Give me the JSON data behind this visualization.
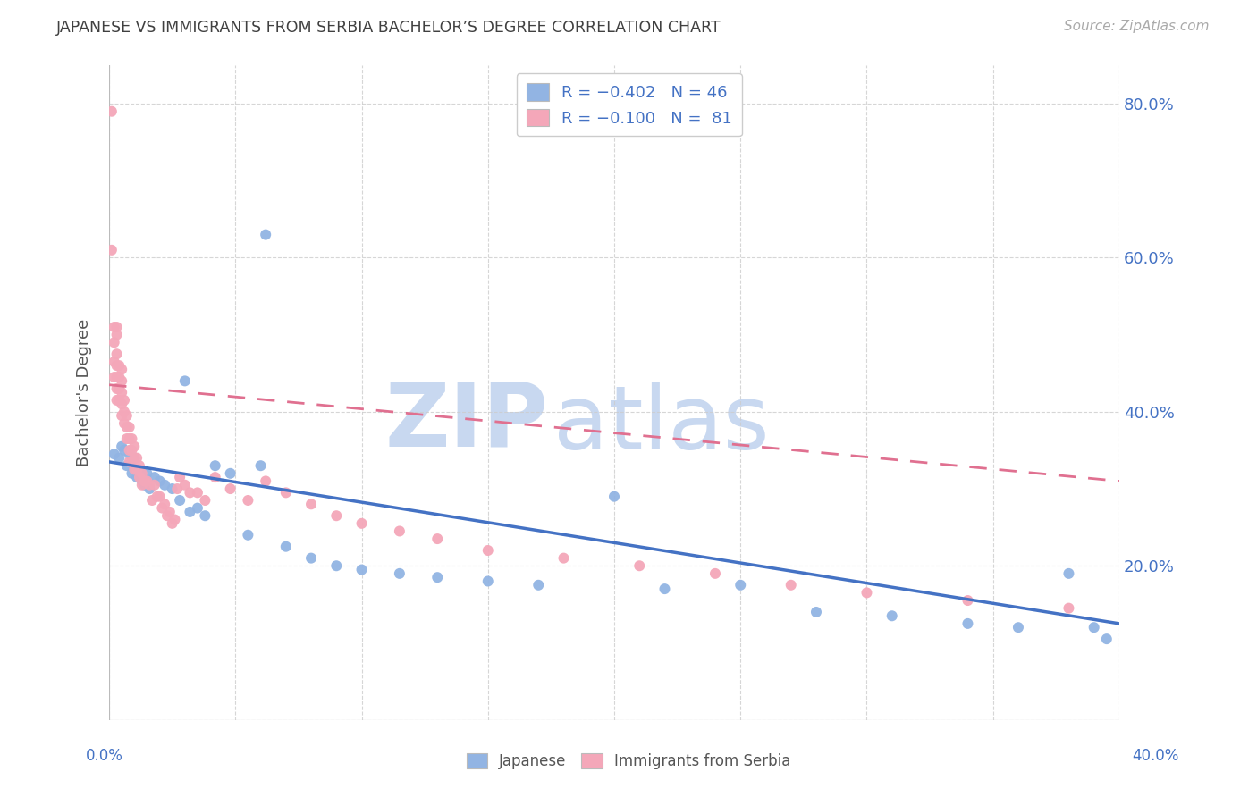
{
  "title": "JAPANESE VS IMMIGRANTS FROM SERBIA BACHELOR’S DEGREE CORRELATION CHART",
  "source": "Source: ZipAtlas.com",
  "ylabel": "Bachelor's Degree",
  "watermark_zip": "ZIP",
  "watermark_atlas": "atlas",
  "xlim": [
    0.0,
    0.4
  ],
  "ylim": [
    0.0,
    0.85
  ],
  "yticks": [
    0.0,
    0.2,
    0.4,
    0.6,
    0.8
  ],
  "ytick_labels": [
    "",
    "20.0%",
    "40.0%",
    "60.0%",
    "80.0%"
  ],
  "legend_line1": "R = −0.402   N = 46",
  "legend_line2": "R = −0.100   N =  81",
  "color_japanese": "#92b4e3",
  "color_serbia": "#f4a7b9",
  "color_trendline_japanese": "#4472c4",
  "color_trendline_serbia": "#e07090",
  "color_axis_labels": "#4472c4",
  "color_title": "#404040",
  "color_source": "#aaaaaa",
  "color_watermark_zip": "#c8d8f0",
  "color_watermark_atlas": "#c8d8f0",
  "background_color": "#ffffff",
  "grid_color": "#cccccc",
  "japanese_x": [
    0.002,
    0.004,
    0.005,
    0.006,
    0.007,
    0.008,
    0.009,
    0.01,
    0.011,
    0.012,
    0.013,
    0.014,
    0.015,
    0.016,
    0.018,
    0.02,
    0.022,
    0.025,
    0.028,
    0.03,
    0.032,
    0.035,
    0.038,
    0.042,
    0.048,
    0.055,
    0.062,
    0.07,
    0.08,
    0.09,
    0.1,
    0.115,
    0.13,
    0.15,
    0.17,
    0.2,
    0.22,
    0.25,
    0.28,
    0.31,
    0.34,
    0.36,
    0.38,
    0.39,
    0.395,
    0.06
  ],
  "japanese_y": [
    0.345,
    0.34,
    0.355,
    0.35,
    0.33,
    0.345,
    0.32,
    0.34,
    0.315,
    0.325,
    0.31,
    0.305,
    0.32,
    0.3,
    0.315,
    0.31,
    0.305,
    0.3,
    0.285,
    0.44,
    0.27,
    0.275,
    0.265,
    0.33,
    0.32,
    0.24,
    0.63,
    0.225,
    0.21,
    0.2,
    0.195,
    0.19,
    0.185,
    0.18,
    0.175,
    0.29,
    0.17,
    0.175,
    0.14,
    0.135,
    0.125,
    0.12,
    0.19,
    0.12,
    0.105,
    0.33
  ],
  "serbia_x": [
    0.001,
    0.001,
    0.002,
    0.002,
    0.002,
    0.002,
    0.003,
    0.003,
    0.003,
    0.003,
    0.003,
    0.003,
    0.003,
    0.004,
    0.004,
    0.004,
    0.004,
    0.005,
    0.005,
    0.005,
    0.005,
    0.005,
    0.006,
    0.006,
    0.006,
    0.007,
    0.007,
    0.007,
    0.008,
    0.008,
    0.008,
    0.008,
    0.009,
    0.009,
    0.009,
    0.01,
    0.01,
    0.01,
    0.011,
    0.011,
    0.012,
    0.012,
    0.013,
    0.013,
    0.014,
    0.015,
    0.016,
    0.017,
    0.018,
    0.019,
    0.02,
    0.021,
    0.022,
    0.023,
    0.024,
    0.025,
    0.026,
    0.027,
    0.028,
    0.03,
    0.032,
    0.035,
    0.038,
    0.042,
    0.048,
    0.055,
    0.062,
    0.07,
    0.08,
    0.09,
    0.1,
    0.115,
    0.13,
    0.15,
    0.18,
    0.21,
    0.24,
    0.27,
    0.3,
    0.34,
    0.38
  ],
  "serbia_y": [
    0.79,
    0.61,
    0.51,
    0.49,
    0.465,
    0.445,
    0.51,
    0.5,
    0.475,
    0.46,
    0.445,
    0.43,
    0.415,
    0.46,
    0.445,
    0.43,
    0.415,
    0.455,
    0.44,
    0.425,
    0.41,
    0.395,
    0.415,
    0.4,
    0.385,
    0.395,
    0.38,
    0.365,
    0.38,
    0.365,
    0.35,
    0.335,
    0.365,
    0.35,
    0.335,
    0.355,
    0.34,
    0.325,
    0.34,
    0.325,
    0.33,
    0.315,
    0.32,
    0.305,
    0.31,
    0.31,
    0.305,
    0.285,
    0.305,
    0.29,
    0.29,
    0.275,
    0.28,
    0.265,
    0.27,
    0.255,
    0.26,
    0.3,
    0.315,
    0.305,
    0.295,
    0.295,
    0.285,
    0.315,
    0.3,
    0.285,
    0.31,
    0.295,
    0.28,
    0.265,
    0.255,
    0.245,
    0.235,
    0.22,
    0.21,
    0.2,
    0.19,
    0.175,
    0.165,
    0.155,
    0.145
  ],
  "trendline_japanese_x0": 0.0,
  "trendline_japanese_y0": 0.335,
  "trendline_japanese_x1": 0.4,
  "trendline_japanese_y1": 0.125,
  "trendline_serbia_x0": 0.0,
  "trendline_serbia_y0": 0.435,
  "trendline_serbia_x1": 0.4,
  "trendline_serbia_y1": 0.31
}
